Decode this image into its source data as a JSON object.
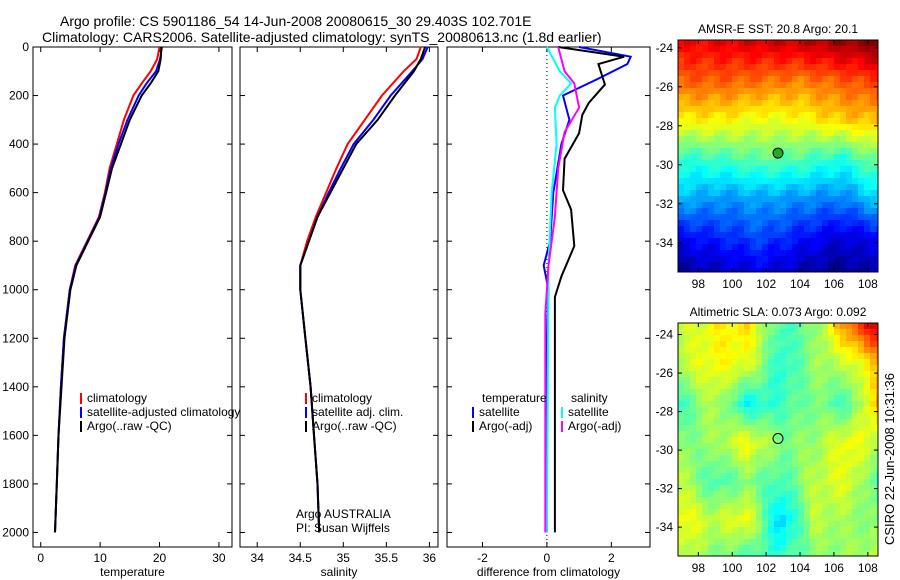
{
  "title": {
    "line1": "Argo profile: CS 5901186_54 14-Jun-2008 20080615_30 29.403S 102.701E",
    "line2": "Climatology: CARS2006. Satellite-adjusted climatology: synTS_20080613.nc (1.8d earlier)"
  },
  "credit": "CSIRO 22-Jun-2008 10:31:36",
  "chart_data": [
    {
      "type": "line",
      "xlabel": "temperature",
      "ylabel": "",
      "xlim": [
        -1.3,
        32.2
      ],
      "ylim": [
        2060,
        0
      ],
      "xticks": [
        0,
        10,
        20,
        30
      ],
      "yticks": [
        0,
        200,
        400,
        600,
        800,
        1000,
        1200,
        1400,
        1600,
        1800,
        2000
      ],
      "legend": [
        "climatology",
        "satellite-adjusted climatology",
        "Argo(..raw -QC)"
      ],
      "depth": [
        0,
        50,
        100,
        150,
        200,
        300,
        400,
        500,
        600,
        700,
        800,
        900,
        1000,
        1200,
        1400,
        1600,
        1800,
        2000
      ],
      "series": [
        {
          "name": "climatology",
          "color": "#ff0000",
          "values": [
            20.0,
            19.6,
            18.5,
            17.0,
            15.6,
            14.0,
            12.8,
            11.6,
            10.8,
            9.8,
            7.8,
            5.8,
            4.9,
            3.9,
            3.4,
            3.0,
            2.7,
            2.4
          ]
        },
        {
          "name": "satellite-adjusted climatology",
          "color": "#0000ff",
          "values": [
            20.4,
            20.1,
            19.4,
            17.8,
            16.5,
            14.6,
            13.1,
            11.8,
            10.9,
            9.9,
            7.9,
            5.9,
            4.9,
            3.9,
            3.4,
            3.0,
            2.7,
            2.4
          ]
        },
        {
          "name": "Argo(..raw -QC)",
          "color": "#000000",
          "values": [
            20.3,
            20.2,
            19.8,
            18.5,
            17.0,
            15.0,
            13.5,
            12.0,
            11.0,
            10.0,
            8.0,
            6.0,
            5.0,
            4.0,
            3.5,
            3.0,
            2.7,
            2.4
          ]
        }
      ]
    },
    {
      "type": "line",
      "xlabel": "salinity",
      "xlim": [
        33.8,
        36.1
      ],
      "ylim": [
        2060,
        0
      ],
      "xticks": [
        34,
        34.5,
        35,
        35.5,
        36
      ],
      "legend": [
        "climatology",
        "satellite adj. clim.",
        "Argo(..raw -QC)"
      ],
      "annotation": [
        "Argo AUSTRALIA",
        "PI: Susan Wijffels"
      ],
      "depth": [
        0,
        50,
        100,
        200,
        300,
        400,
        500,
        600,
        700,
        800,
        900,
        1000,
        1200,
        1400,
        1600,
        1800,
        2000
      ],
      "series": [
        {
          "name": "climatology",
          "color": "#ff0000",
          "values": [
            35.9,
            35.85,
            35.7,
            35.45,
            35.25,
            35.05,
            34.92,
            34.8,
            34.68,
            34.58,
            34.5,
            34.5,
            34.56,
            34.62,
            34.66,
            34.7,
            34.72
          ]
        },
        {
          "name": "satellite adj. clim.",
          "color": "#0000ff",
          "values": [
            35.98,
            35.92,
            35.8,
            35.55,
            35.35,
            35.12,
            34.97,
            34.83,
            34.7,
            34.6,
            34.5,
            34.5,
            34.56,
            34.62,
            34.66,
            34.7,
            34.72
          ]
        },
        {
          "name": "Argo(..raw -QC)",
          "color": "#000000",
          "values": [
            35.95,
            35.9,
            35.82,
            35.6,
            35.4,
            35.15,
            35.0,
            34.85,
            34.7,
            34.6,
            34.5,
            34.5,
            34.56,
            34.62,
            34.66,
            34.7,
            34.72
          ]
        }
      ]
    },
    {
      "type": "line",
      "xlabel": "difference from climatology",
      "xlim": [
        -3.1,
        3.2
      ],
      "ylim": [
        2060,
        0
      ],
      "xticks": [
        -2,
        0,
        2
      ],
      "legend_headers": [
        "temperature",
        "salinity"
      ],
      "series": [
        {
          "name": "satellite",
          "group": "temperature",
          "color": "#0000ff",
          "depth": [
            0,
            40,
            70,
            130,
            200,
            300,
            400,
            600,
            800,
            900,
            1000,
            1200,
            2000
          ],
          "values": [
            1.0,
            2.6,
            2.5,
            1.6,
            0.5,
            0.7,
            0.45,
            0.2,
            0.1,
            -0.1,
            0.05,
            0.0,
            0.0
          ]
        },
        {
          "name": "Argo(-adj)",
          "group": "temperature",
          "color": "#000000",
          "depth": [
            0,
            40,
            70,
            155,
            230,
            280,
            355,
            460,
            590,
            670,
            820,
            945,
            1030,
            1195,
            2000
          ],
          "values": [
            0.35,
            2.4,
            1.6,
            1.8,
            1.3,
            1.1,
            1.0,
            0.55,
            0.5,
            0.75,
            0.85,
            0.45,
            0.25,
            0.25,
            0.25
          ]
        },
        {
          "name": "satellite",
          "group": "salinity",
          "color": "#00ffff",
          "depth": [
            0,
            100,
            150,
            200,
            250,
            400,
            600,
            900,
            2000
          ],
          "values": [
            0.0,
            0.4,
            0.75,
            0.4,
            0.25,
            0.3,
            0.15,
            0.05,
            0.0
          ]
        },
        {
          "name": "Argo(-adj)",
          "group": "salinity",
          "color": "#ff00ff",
          "depth": [
            0,
            100,
            150,
            250,
            350,
            500,
            700,
            900,
            1100,
            2000
          ],
          "values": [
            0.35,
            0.55,
            0.85,
            1.0,
            0.55,
            0.35,
            0.25,
            0.05,
            -0.05,
            -0.05
          ]
        }
      ]
    },
    {
      "type": "heatmap",
      "title": "AMSR-E SST: 20.8 Argo: 20.1",
      "xlim": [
        96.8,
        108.6
      ],
      "ylim": [
        -23.6,
        -35.5
      ],
      "xticks": [
        98,
        100,
        102,
        104,
        106,
        108
      ],
      "yticks": [
        -24,
        -26,
        -28,
        -30,
        -32,
        -34
      ],
      "clim": [
        17.5,
        23.0
      ],
      "marker": {
        "lon": 102.7,
        "lat": -29.4
      },
      "grid": [
        [
          22.3,
          22.4,
          22.5,
          22.6,
          22.8,
          23.0
        ],
        [
          21.8,
          21.8,
          21.7,
          21.6,
          21.8,
          22.0
        ],
        [
          21.0,
          21.0,
          20.8,
          20.9,
          21.2,
          21.3
        ],
        [
          19.8,
          19.9,
          20.1,
          20.0,
          19.7,
          20.3
        ],
        [
          19.2,
          19.0,
          19.1,
          19.0,
          18.9,
          19.4
        ],
        [
          18.2,
          18.4,
          18.6,
          18.3,
          18.0,
          18.2
        ],
        [
          17.6,
          17.8,
          18.0,
          17.7,
          17.5,
          17.8
        ]
      ]
    },
    {
      "type": "heatmap",
      "title": "Altimetric SLA: 0.073 Argo: 0.092",
      "xlim": [
        96.8,
        108.6
      ],
      "ylim": [
        -23.4,
        -35.5
      ],
      "xticks": [
        98,
        100,
        102,
        104,
        106,
        108
      ],
      "yticks": [
        -24,
        -26,
        -28,
        -30,
        -32,
        -34
      ],
      "clim": [
        -0.3,
        0.5
      ],
      "marker": {
        "lon": 102.7,
        "lat": -29.4
      },
      "grid": [
        [
          0.15,
          0.2,
          0.22,
          0.05,
          0.1,
          0.3,
          0.45
        ],
        [
          0.15,
          0.2,
          0.18,
          0.02,
          0.12,
          0.15,
          0.25
        ],
        [
          0.05,
          0.15,
          0.0,
          0.05,
          0.1,
          0.05,
          0.28
        ],
        [
          0.1,
          0.12,
          0.2,
          0.1,
          0.12,
          0.2,
          0.15
        ],
        [
          0.15,
          0.05,
          0.1,
          0.05,
          0.15,
          0.18,
          0.05
        ],
        [
          0.2,
          0.15,
          0.2,
          -0.05,
          0.15,
          0.12,
          0.1
        ],
        [
          0.15,
          0.1,
          0.05,
          0.05,
          0.1,
          0.12,
          0.15
        ]
      ]
    }
  ]
}
